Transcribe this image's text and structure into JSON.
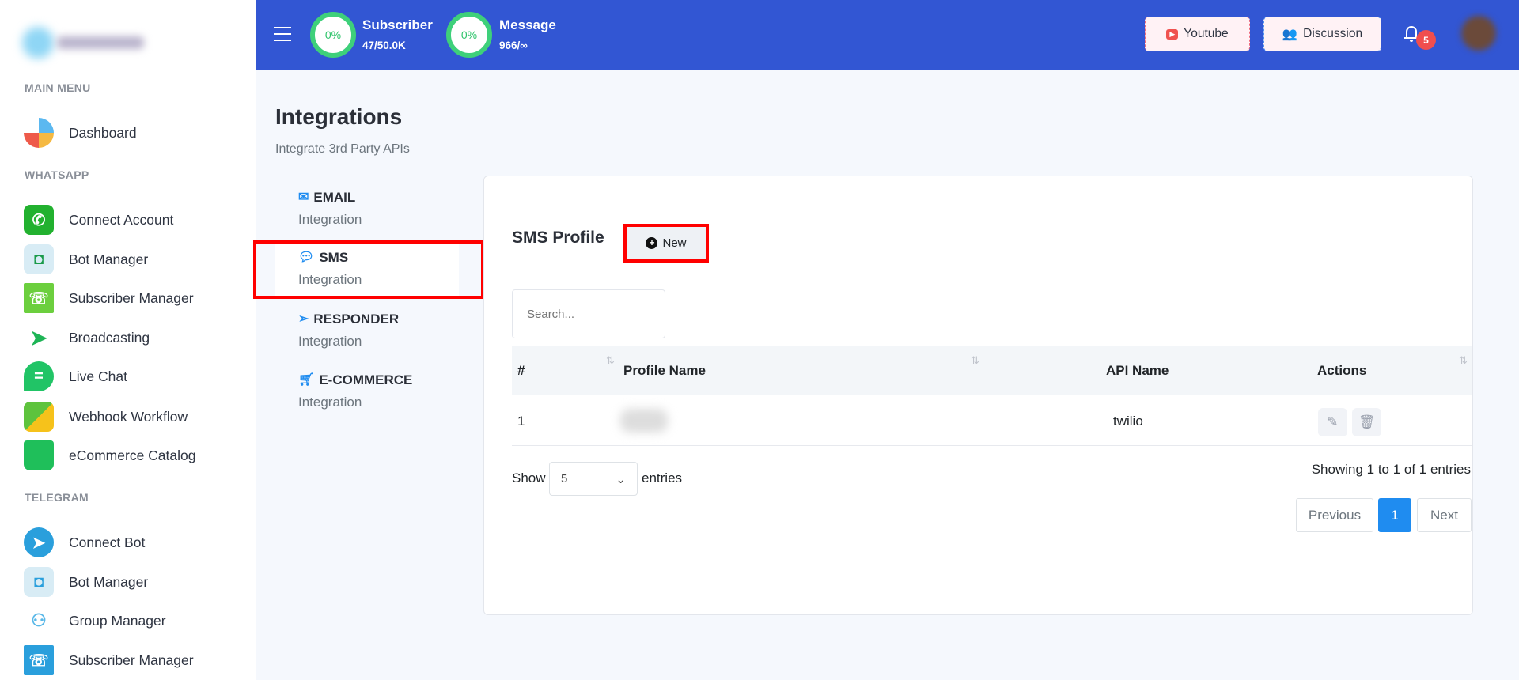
{
  "sidebar": {
    "sections": [
      {
        "label": "MAIN MENU",
        "items": [
          {
            "label": "Dashboard",
            "icon": "dashboard-gauge-icon"
          }
        ]
      },
      {
        "label": "WHATSAPP",
        "items": [
          {
            "label": "Connect Account",
            "icon": "whatsapp-icon"
          },
          {
            "label": "Bot Manager",
            "icon": "robot-icon"
          },
          {
            "label": "Subscriber Manager",
            "icon": "contact-book-icon"
          },
          {
            "label": "Broadcasting",
            "icon": "paper-plane-icon"
          },
          {
            "label": "Live Chat",
            "icon": "chat-bubble-icon"
          },
          {
            "label": "Webhook Workflow",
            "icon": "puzzle-icon"
          },
          {
            "label": "eCommerce Catalog",
            "icon": "shopping-bag-icon"
          }
        ]
      },
      {
        "label": "TELEGRAM",
        "items": [
          {
            "label": "Connect Bot",
            "icon": "telegram-icon"
          },
          {
            "label": "Bot Manager",
            "icon": "robot-icon"
          },
          {
            "label": "Group Manager",
            "icon": "group-icon"
          },
          {
            "label": "Subscriber Manager",
            "icon": "contact-book-icon"
          }
        ]
      }
    ]
  },
  "header": {
    "subscriber": {
      "label": "Subscriber",
      "value": "47/50.0K",
      "percent": "0%"
    },
    "message": {
      "label": "Message",
      "value": "966/∞",
      "percent": "0%"
    },
    "youtube_label": "Youtube",
    "discussion_label": "Discussion",
    "notification_count": "5"
  },
  "page": {
    "title": "Integrations",
    "subtitle": "Integrate 3rd Party APIs"
  },
  "tabs": [
    {
      "name": "EMAIL",
      "sub": "Integration",
      "icon": "envelope-icon"
    },
    {
      "name": "SMS",
      "sub": "Integration",
      "icon": "sms-icon",
      "active": true
    },
    {
      "name": "RESPONDER",
      "sub": "Integration",
      "icon": "paper-plane-icon"
    },
    {
      "name": "E-COMMERCE",
      "sub": "Integration",
      "icon": "cart-icon"
    }
  ],
  "card": {
    "title": "SMS Profile",
    "new_label": "New",
    "search_placeholder": "Search...",
    "columns": [
      "#",
      "Profile Name",
      "API Name",
      "Actions"
    ],
    "rows": [
      {
        "num": "1",
        "profile": "",
        "api": "twilio"
      }
    ],
    "show_label": "Show",
    "page_size": "5",
    "entries_label": "entries",
    "info": "Showing 1 to 1 of 1 entries",
    "prev": "Previous",
    "current_page": "1",
    "next": "Next"
  },
  "colors": {
    "header": "#3256d3",
    "accent": "#1f8cf0",
    "highlight": "#ff0000"
  }
}
